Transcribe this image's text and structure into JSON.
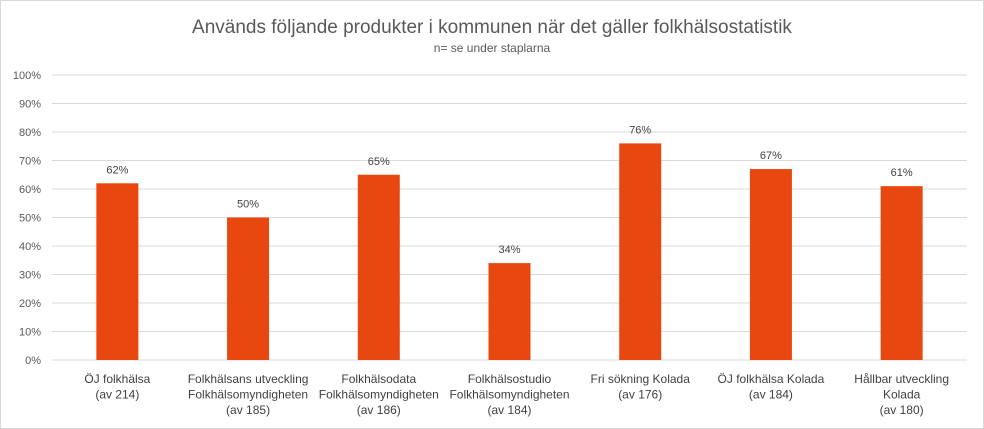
{
  "chart_data": {
    "type": "bar",
    "title": "Används följande produkter i kommunen när det gäller folkhälsostatistik",
    "subtitle": "n= se under staplarna",
    "xlabel": "",
    "ylabel": "",
    "ylim": [
      0,
      100
    ],
    "yticks": [
      "0%",
      "10%",
      "20%",
      "30%",
      "40%",
      "50%",
      "60%",
      "70%",
      "80%",
      "90%",
      "100%"
    ],
    "grid": true,
    "legend": "none",
    "bar_color": "#e8470f",
    "grid_color": "#d9d9d9",
    "categories": [
      [
        "ÖJ folkhälsa",
        "(av 214)"
      ],
      [
        "Folkhälsans utveckling",
        "Folkhälsomyndigheten",
        "(av 185)"
      ],
      [
        "Folkhälsodata",
        "Folkhälsomyndigheten",
        "(av 186)"
      ],
      [
        "Folkhälsostudio",
        "Folkhälsomyndigheten",
        "(av 184)"
      ],
      [
        "Fri sökning Kolada",
        "(av 176)"
      ],
      [
        "ÖJ folkhälsa Kolada",
        "(av 184)"
      ],
      [
        "Hållbar utveckling",
        "Kolada",
        "(av 180)"
      ]
    ],
    "values": [
      62,
      50,
      65,
      34,
      76,
      67,
      61
    ],
    "data_labels": [
      "62%",
      "50%",
      "65%",
      "34%",
      "76%",
      "67%",
      "61%"
    ]
  }
}
